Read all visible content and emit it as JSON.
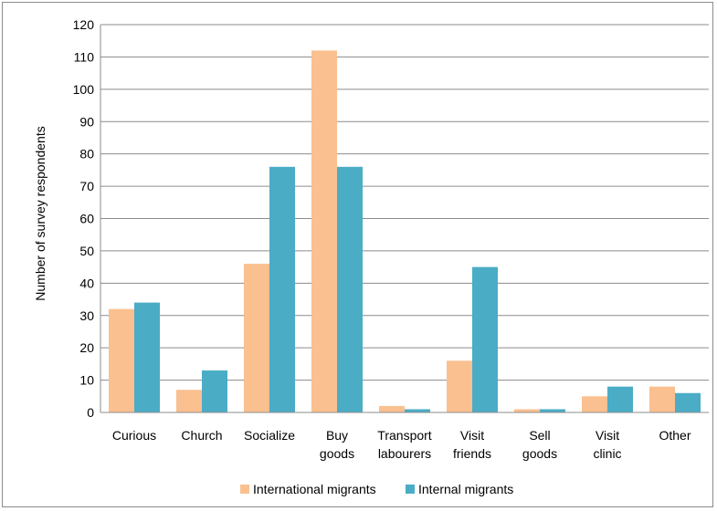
{
  "chart_data": {
    "type": "bar",
    "title": "",
    "ylabel": "Number of survey respondents",
    "xlabel": "",
    "ylim": [
      0,
      120
    ],
    "ytick_step": 10,
    "grid": true,
    "legend_position": "bottom",
    "categories": [
      [
        "Curious"
      ],
      [
        "Church"
      ],
      [
        "Socialize"
      ],
      [
        "Buy",
        "goods"
      ],
      [
        "Transport",
        "labourers"
      ],
      [
        "Visit",
        "friends"
      ],
      [
        "Sell",
        "goods"
      ],
      [
        "Visit",
        "clinic"
      ],
      [
        "Other"
      ]
    ],
    "series": [
      {
        "name": "International migrants",
        "color": "#FAC090",
        "values": [
          32,
          7,
          46,
          112,
          2,
          16,
          1,
          5,
          8
        ]
      },
      {
        "name": "Internal migrants",
        "color": "#4BACC6",
        "values": [
          34,
          13,
          76,
          76,
          1,
          45,
          1,
          8,
          6
        ]
      }
    ]
  }
}
